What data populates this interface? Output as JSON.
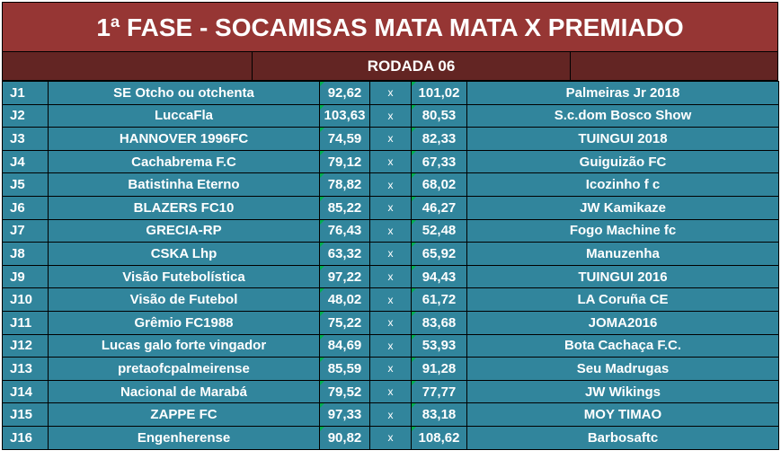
{
  "title": "1ª FASE - SOCAMISAS MATA MATA X PREMIADO",
  "round_label": "RODADA 06",
  "matches": [
    {
      "code": "J1",
      "home": "SE Otcho ou otchenta",
      "home_score": "92,62",
      "sep": "x",
      "away_score": "101,02",
      "away": "Palmeiras Jr 2018"
    },
    {
      "code": "J2",
      "home": "LuccaFla",
      "home_score": "103,63",
      "sep": "x",
      "away_score": "80,53",
      "away": "S.c.dom Bosco Show"
    },
    {
      "code": "J3",
      "home": "HANNOVER 1996FC",
      "home_score": "74,59",
      "sep": "x",
      "away_score": "82,33",
      "away": "TUINGUI 2018"
    },
    {
      "code": "J4",
      "home": "Cachabrema F.C",
      "home_score": "79,12",
      "sep": "x",
      "away_score": "67,33",
      "away": "Guiguizão FC"
    },
    {
      "code": "J5",
      "home": "Batistinha Eterno",
      "home_score": "78,82",
      "sep": "x",
      "away_score": "68,02",
      "away": "Icozinho f c"
    },
    {
      "code": "J6",
      "home": "BLAZERS FC10",
      "home_score": "85,22",
      "sep": "x",
      "away_score": "46,27",
      "away": "JW Kamikaze"
    },
    {
      "code": "J7",
      "home": "GRECIA-RP",
      "home_score": "76,43",
      "sep": "x",
      "away_score": "52,48",
      "away": "Fogo Machine fc"
    },
    {
      "code": "J8",
      "home": "CSKA Lhp",
      "home_score": "63,32",
      "sep": "x",
      "away_score": "65,92",
      "away": "Manuzenha"
    },
    {
      "code": "J9",
      "home": "Visão Futebolística",
      "home_score": "97,22",
      "sep": "x",
      "away_score": "94,43",
      "away": "TUINGUI 2016"
    },
    {
      "code": "J10",
      "home": "Visão de Futebol",
      "home_score": "48,02",
      "sep": "x",
      "away_score": "61,72",
      "away": "LA Coruña CE"
    },
    {
      "code": "J11",
      "home": "Grêmio FC1988",
      "home_score": "75,22",
      "sep": "x",
      "away_score": "83,68",
      "away": "JOMA2016"
    },
    {
      "code": "J12",
      "home": "Lucas galo forte vingador",
      "home_score": "84,69",
      "sep": "x",
      "away_score": "53,93",
      "away": "Bota Cachaça F.C."
    },
    {
      "code": "J13",
      "home": "pretaofcpalmeirense",
      "home_score": "85,59",
      "sep": "x",
      "away_score": "91,28",
      "away": "Seu Madrugas"
    },
    {
      "code": "J14",
      "home": "Nacional de Marabá",
      "home_score": "79,52",
      "sep": "x",
      "away_score": "77,77",
      "away": "JW Wikings"
    },
    {
      "code": "J15",
      "home": "ZAPPE FC",
      "home_score": "97,33",
      "sep": "x",
      "away_score": "83,18",
      "away": "MOY TIMAO"
    },
    {
      "code": "J16",
      "home": "Engenherense",
      "home_score": "90,82",
      "sep": "x",
      "away_score": "108,62",
      "away": "Barbosaftc"
    }
  ],
  "colors": {
    "title_bg": "#963634",
    "round_bg": "#632523",
    "row_bg": "#31859c",
    "text": "#ffffff"
  }
}
